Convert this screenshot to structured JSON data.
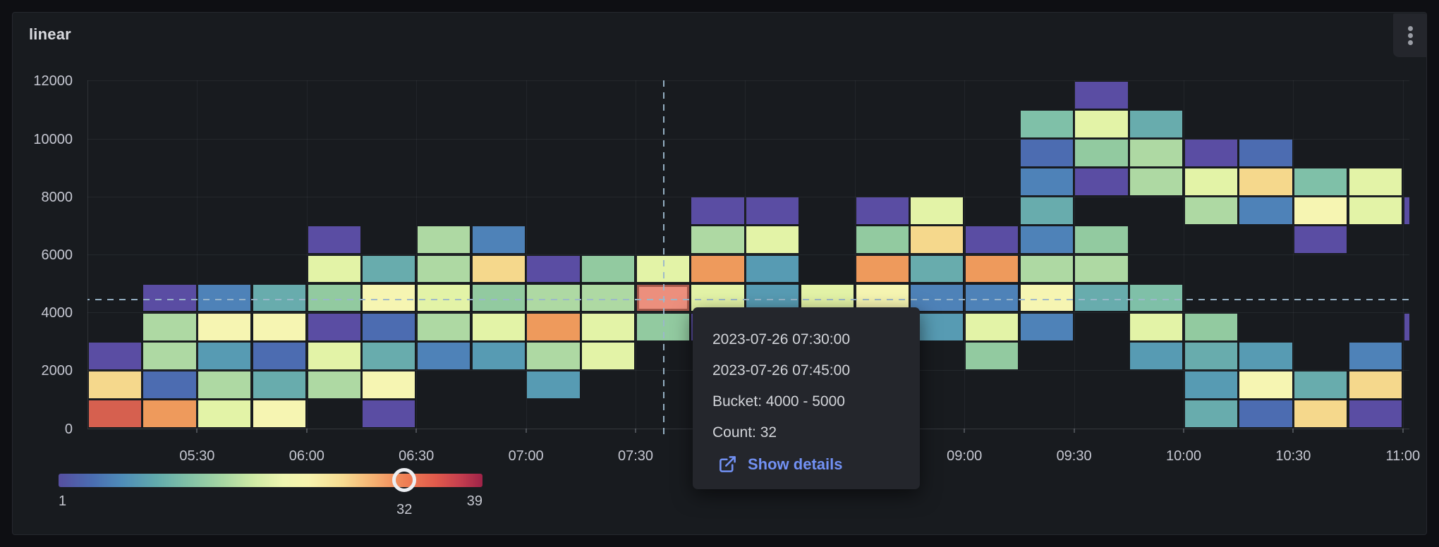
{
  "panel": {
    "title": "linear"
  },
  "tooltip": {
    "line1": "2023-07-26 07:30:00",
    "line2": "2023-07-26 07:45:00",
    "bucket_label": "Bucket: 4000 - 5000",
    "count_label": "Count: 32",
    "action_label": "Show details"
  },
  "legend": {
    "min_label": "1",
    "max_label": "39",
    "selected_label": "32",
    "min_value": 1,
    "max_value": 39,
    "selected_value": 32
  },
  "chart_data": {
    "type": "heatmap",
    "title": "linear",
    "x_range": [
      "2023-07-26 05:00:00",
      "2023-07-26 11:00:00"
    ],
    "x_bin_minutes": 15,
    "x_tick_labels": [
      "05:30",
      "06:00",
      "06:30",
      "07:00",
      "07:30",
      "08:00",
      "08:30",
      "09:00",
      "09:30",
      "10:00",
      "10:30",
      "11:00"
    ],
    "y_label": "",
    "y_range": [
      0,
      12000
    ],
    "y_bucket_size": 1000,
    "y_tick_values": [
      0,
      2000,
      4000,
      6000,
      8000,
      10000,
      12000
    ],
    "color_scale": {
      "palette": "Spectral",
      "min": 1,
      "max": 39
    },
    "palette_classes": {
      "P": {
        "hex": "#5a4da3",
        "count_est": 2
      },
      "B": {
        "hex": "#4c6cb1",
        "count_est": 5
      },
      "SB": {
        "hex": "#4e82b8",
        "count_est": 7
      },
      "TB": {
        "hex": "#579bb3",
        "count_est": 9
      },
      "T": {
        "hex": "#68acad",
        "count_est": 12
      },
      "TG": {
        "hex": "#7fc0a8",
        "count_est": 13
      },
      "MG": {
        "hex": "#92caa0",
        "count_est": 15
      },
      "LG": {
        "hex": "#aed9a3",
        "count_est": 17
      },
      "PG": {
        "hex": "#e3f3a7",
        "count_est": 21
      },
      "PY": {
        "hex": "#f6f5b2",
        "count_est": 23
      },
      "SY": {
        "hex": "#f5d88c",
        "count_est": 26
      },
      "O": {
        "hex": "#ee9a5c",
        "count_est": 30
      },
      "HL": {
        "hex": "#ec8f7d",
        "count_est": 32
      },
      "R": {
        "hex": "#d6604f",
        "count_est": 34
      }
    },
    "columns": [
      {
        "time": "05:00",
        "cells": [
          [
            0,
            "R"
          ],
          [
            1,
            "SY"
          ],
          [
            2,
            "P"
          ]
        ]
      },
      {
        "time": "05:15",
        "cells": [
          [
            0,
            "O"
          ],
          [
            1,
            "B"
          ],
          [
            2,
            "LG"
          ],
          [
            3,
            "LG"
          ],
          [
            4,
            "P"
          ]
        ]
      },
      {
        "time": "05:30",
        "cells": [
          [
            0,
            "PG"
          ],
          [
            1,
            "LG"
          ],
          [
            2,
            "TB"
          ],
          [
            3,
            "PY"
          ],
          [
            4,
            "SB"
          ]
        ]
      },
      {
        "time": "05:45",
        "cells": [
          [
            0,
            "PY"
          ],
          [
            1,
            "T"
          ],
          [
            2,
            "B"
          ],
          [
            3,
            "PY"
          ],
          [
            4,
            "T"
          ]
        ]
      },
      {
        "time": "06:00",
        "cells": [
          [
            1,
            "LG"
          ],
          [
            2,
            "PG"
          ],
          [
            3,
            "P"
          ],
          [
            4,
            "MG"
          ],
          [
            5,
            "PG"
          ],
          [
            6,
            "P"
          ]
        ]
      },
      {
        "time": "06:15",
        "cells": [
          [
            0,
            "P"
          ],
          [
            1,
            "PY"
          ],
          [
            2,
            "T"
          ],
          [
            3,
            "B"
          ],
          [
            4,
            "PY"
          ],
          [
            5,
            "T"
          ]
        ]
      },
      {
        "time": "06:30",
        "cells": [
          [
            2,
            "SB"
          ],
          [
            3,
            "LG"
          ],
          [
            4,
            "PG"
          ],
          [
            5,
            "LG"
          ],
          [
            6,
            "LG"
          ]
        ]
      },
      {
        "time": "06:45",
        "cells": [
          [
            2,
            "TB"
          ],
          [
            3,
            "PG"
          ],
          [
            4,
            "MG"
          ],
          [
            5,
            "SY"
          ],
          [
            6,
            "SB"
          ]
        ]
      },
      {
        "time": "07:00",
        "cells": [
          [
            1,
            "TB"
          ],
          [
            2,
            "LG"
          ],
          [
            3,
            "O"
          ],
          [
            4,
            "LG"
          ],
          [
            5,
            "P"
          ]
        ]
      },
      {
        "time": "07:15",
        "cells": [
          [
            2,
            "PG"
          ],
          [
            3,
            "PG"
          ],
          [
            4,
            "LG"
          ],
          [
            5,
            "MG"
          ]
        ]
      },
      {
        "time": "07:30",
        "cells": [
          [
            3,
            "MG"
          ],
          [
            4,
            "HL"
          ],
          [
            5,
            "PG"
          ]
        ]
      },
      {
        "time": "07:45",
        "cells": [
          [
            3,
            "P"
          ],
          [
            4,
            "PG"
          ],
          [
            5,
            "O"
          ],
          [
            6,
            "LG"
          ],
          [
            7,
            "P"
          ]
        ]
      },
      {
        "time": "08:00",
        "cells": [
          [
            4,
            "TB"
          ],
          [
            5,
            "TB"
          ],
          [
            6,
            "PG"
          ],
          [
            7,
            "P"
          ]
        ]
      },
      {
        "time": "08:15",
        "cells": [
          [
            4,
            "PG"
          ]
        ]
      },
      {
        "time": "08:30",
        "cells": [
          [
            4,
            "PY"
          ],
          [
            5,
            "O"
          ],
          [
            6,
            "MG"
          ],
          [
            7,
            "P"
          ]
        ]
      },
      {
        "time": "08:45",
        "cells": [
          [
            3,
            "TB"
          ],
          [
            4,
            "SB"
          ],
          [
            5,
            "T"
          ],
          [
            6,
            "SY"
          ],
          [
            7,
            "PG"
          ]
        ]
      },
      {
        "time": "09:00",
        "cells": [
          [
            2,
            "MG"
          ],
          [
            3,
            "PG"
          ],
          [
            4,
            "SB"
          ],
          [
            5,
            "O"
          ],
          [
            6,
            "P"
          ]
        ]
      },
      {
        "time": "09:15",
        "cells": [
          [
            3,
            "SB"
          ],
          [
            4,
            "PY"
          ],
          [
            5,
            "LG"
          ],
          [
            6,
            "SB"
          ],
          [
            7,
            "T"
          ],
          [
            8,
            "SB"
          ],
          [
            9,
            "B"
          ],
          [
            10,
            "TG"
          ]
        ]
      },
      {
        "time": "09:30",
        "cells": [
          [
            4,
            "T"
          ],
          [
            5,
            "LG"
          ],
          [
            6,
            "MG"
          ],
          [
            8,
            "P"
          ],
          [
            9,
            "MG"
          ],
          [
            10,
            "PG"
          ],
          [
            11,
            "P"
          ]
        ]
      },
      {
        "time": "09:45",
        "cells": [
          [
            2,
            "TB"
          ],
          [
            3,
            "PG"
          ],
          [
            4,
            "TG"
          ],
          [
            8,
            "LG"
          ],
          [
            9,
            "LG"
          ],
          [
            10,
            "T"
          ]
        ]
      },
      {
        "time": "10:00",
        "cells": [
          [
            0,
            "T"
          ],
          [
            1,
            "TB"
          ],
          [
            2,
            "T"
          ],
          [
            3,
            "MG"
          ],
          [
            7,
            "LG"
          ],
          [
            8,
            "PG"
          ],
          [
            9,
            "P"
          ]
        ]
      },
      {
        "time": "10:15",
        "cells": [
          [
            0,
            "B"
          ],
          [
            1,
            "PY"
          ],
          [
            2,
            "TB"
          ],
          [
            7,
            "SB"
          ],
          [
            8,
            "SY"
          ],
          [
            9,
            "B"
          ]
        ]
      },
      {
        "time": "10:30",
        "cells": [
          [
            0,
            "SY"
          ],
          [
            1,
            "T"
          ],
          [
            6,
            "P"
          ],
          [
            7,
            "PY"
          ],
          [
            8,
            "TG"
          ]
        ]
      },
      {
        "time": "10:45",
        "cells": [
          [
            0,
            "P"
          ],
          [
            1,
            "SY"
          ],
          [
            2,
            "SB"
          ],
          [
            7,
            "PG"
          ],
          [
            8,
            "PG"
          ]
        ]
      },
      {
        "time": "11:00",
        "cells": [
          [
            3,
            "P"
          ],
          [
            7,
            "P"
          ]
        ]
      }
    ],
    "highlighted_cell": {
      "time_start": "07:30",
      "time_end": "07:45",
      "bucket": [
        4000,
        5000
      ],
      "count": 32
    },
    "crosshair": {
      "x_fraction": 0.4366,
      "y_value": 4465
    }
  }
}
